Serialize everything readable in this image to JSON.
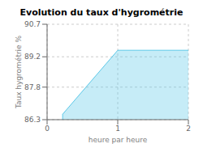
{
  "chart_data": {
    "type": "area",
    "title": "Evolution du taux d'hygrométrie",
    "xlabel": "heure par heure",
    "ylabel": "Taux hygrométrie %",
    "x": [
      0.22,
      0.22,
      1.0,
      2.0
    ],
    "values": [
      86.3,
      86.55,
      89.5,
      89.5
    ],
    "color": "#5bc8e8",
    "xlim": [
      0,
      2
    ],
    "xticks": [
      0,
      1,
      2
    ],
    "ylim": [
      86.3,
      90.7
    ],
    "yticks": [
      86.3,
      87.8,
      89.2,
      90.7
    ],
    "grid": true
  }
}
